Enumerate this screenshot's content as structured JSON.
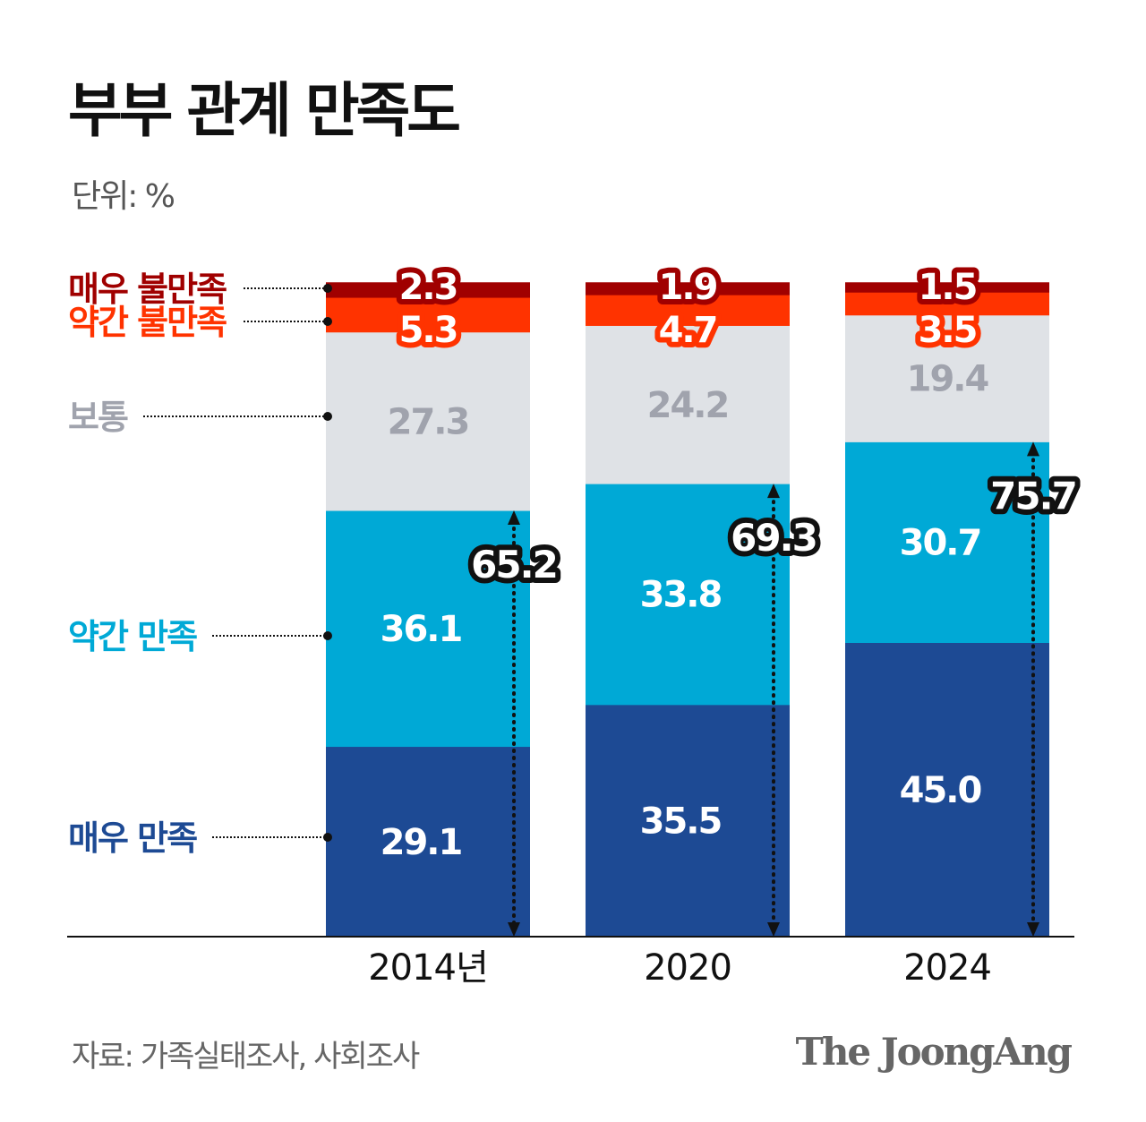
{
  "title": "부부 관계 만족도",
  "unit_label": "단위: %",
  "source": "자료: 가족실태조사, 사회조사",
  "logo": "The JoongAng",
  "chart_data": {
    "type": "bar",
    "stacked": true,
    "title": "부부 관계 만족도",
    "ylabel": "단위: %",
    "ylim": [
      0,
      100
    ],
    "grid": false,
    "categories": [
      "2014년",
      "2020",
      "2024"
    ],
    "series": [
      {
        "name": "매우 만족",
        "color": "#1d4a94",
        "values": [
          29.1,
          35.5,
          45.0
        ],
        "labels": [
          "29.1",
          "35.5",
          "45.0"
        ]
      },
      {
        "name": "약간 만족",
        "color": "#00a9d6",
        "values": [
          36.1,
          33.8,
          30.7
        ],
        "labels": [
          "36.1",
          "33.8",
          "30.7"
        ]
      },
      {
        "name": "보통",
        "color": "#dfe2e6",
        "values": [
          27.3,
          24.2,
          19.4
        ],
        "labels": [
          "27.3",
          "24.2",
          "19.4"
        ]
      },
      {
        "name": "약간 불만족",
        "color": "#ff3300",
        "values": [
          5.3,
          4.7,
          3.5
        ],
        "labels": [
          "5.3",
          "4.7",
          "3.5"
        ]
      },
      {
        "name": "매우 불만족",
        "color": "#a00000",
        "values": [
          2.3,
          1.9,
          1.5
        ],
        "labels": [
          "2.3",
          "1.9",
          "1.5"
        ]
      }
    ],
    "satisfied_totals": [
      "65.2",
      "69.3",
      "75.7"
    ],
    "legend_placement": "left"
  }
}
